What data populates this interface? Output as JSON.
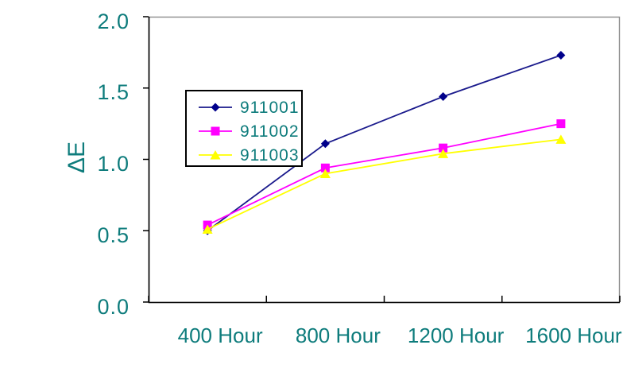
{
  "colors": {
    "text": "#0E7C7C",
    "axis": "#000000",
    "plot_border": "#8C8C8C",
    "background": "#FFFFFF"
  },
  "chart_data": {
    "type": "line",
    "title": "",
    "xlabel": "",
    "ylabel": "ΔE",
    "categories": [
      "400 Hour",
      "800 Hour",
      "1200 Hour",
      "1600 Hour"
    ],
    "series": [
      {
        "name": "911001",
        "values": [
          0.5,
          1.11,
          1.44,
          1.73
        ],
        "color": "#1A1A8C",
        "marker": "diamond",
        "marker_color": "#00008B"
      },
      {
        "name": "911002",
        "values": [
          0.54,
          0.94,
          1.08,
          1.25
        ],
        "color": "#FF00FF",
        "marker": "square",
        "marker_color": "#FF00FF"
      },
      {
        "name": "911003",
        "values": [
          0.51,
          0.9,
          1.04,
          1.14
        ],
        "color": "#FFFF00",
        "marker": "triangle",
        "marker_color": "#FFFF00"
      }
    ],
    "ylim": [
      0.0,
      2.0
    ],
    "ytick_step": 0.5,
    "ytick_labels": [
      "0.0",
      "0.5",
      "1.0",
      "1.5",
      "2.0"
    ],
    "grid": false,
    "legend_position": "inside-upper-left",
    "legend_entries": [
      "911001",
      "911002",
      "911003"
    ]
  }
}
